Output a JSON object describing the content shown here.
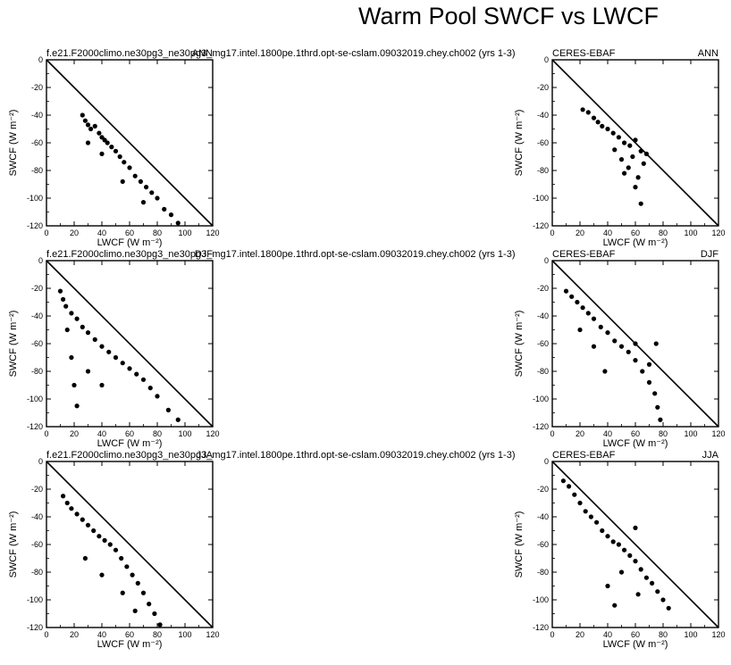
{
  "title": "Warm Pool SWCF vs LWCF",
  "model_case": "f.e21.F2000climo.ne30pg3_ne30pg3_mg17.intel.1800pe.1thrd.opt-se-cslam.09032019.chey.ch002 (yrs 1-3)",
  "obs_name": "CERES-EBAF",
  "chart_data": {
    "type": "scatter",
    "xlabel": "LWCF (W m⁻²)",
    "ylabel": "SWCF (W m⁻²)",
    "xlim": [
      0,
      120
    ],
    "ylim": [
      -120,
      0
    ],
    "xticks": [
      "0",
      "20",
      "40",
      "60",
      "80",
      "100",
      "120"
    ],
    "yticks": [
      "0",
      "-20",
      "-40",
      "-60",
      "-80",
      "-100",
      "-120"
    ],
    "reference_line": {
      "from": [
        0,
        0
      ],
      "to": [
        120,
        -120
      ]
    },
    "panels": [
      {
        "source": "model",
        "season": "ANN",
        "points": [
          [
            26,
            -40
          ],
          [
            28,
            -44
          ],
          [
            30,
            -47
          ],
          [
            32,
            -50
          ],
          [
            35,
            -48
          ],
          [
            38,
            -53
          ],
          [
            40,
            -56
          ],
          [
            42,
            -58
          ],
          [
            44,
            -60
          ],
          [
            47,
            -63
          ],
          [
            50,
            -66
          ],
          [
            53,
            -70
          ],
          [
            56,
            -74
          ],
          [
            60,
            -78
          ],
          [
            64,
            -84
          ],
          [
            68,
            -88
          ],
          [
            72,
            -92
          ],
          [
            76,
            -96
          ],
          [
            80,
            -100
          ],
          [
            85,
            -108
          ],
          [
            90,
            -112
          ],
          [
            95,
            -118
          ],
          [
            30,
            -60
          ],
          [
            40,
            -68
          ],
          [
            55,
            -88
          ],
          [
            70,
            -103
          ]
        ]
      },
      {
        "source": "obs",
        "season": "ANN",
        "points": [
          [
            22,
            -36
          ],
          [
            26,
            -38
          ],
          [
            30,
            -42
          ],
          [
            33,
            -45
          ],
          [
            36,
            -48
          ],
          [
            40,
            -50
          ],
          [
            44,
            -53
          ],
          [
            48,
            -56
          ],
          [
            52,
            -60
          ],
          [
            56,
            -62
          ],
          [
            60,
            -58
          ],
          [
            64,
            -66
          ],
          [
            66,
            -75
          ],
          [
            62,
            -85
          ],
          [
            60,
            -92
          ],
          [
            64,
            -104
          ],
          [
            55,
            -78
          ],
          [
            50,
            -72
          ],
          [
            45,
            -65
          ],
          [
            58,
            -70
          ],
          [
            68,
            -68
          ],
          [
            52,
            -82
          ]
        ]
      },
      {
        "source": "model",
        "season": "DJF",
        "points": [
          [
            10,
            -22
          ],
          [
            12,
            -28
          ],
          [
            14,
            -33
          ],
          [
            18,
            -38
          ],
          [
            22,
            -42
          ],
          [
            26,
            -48
          ],
          [
            30,
            -52
          ],
          [
            35,
            -57
          ],
          [
            40,
            -62
          ],
          [
            45,
            -66
          ],
          [
            50,
            -70
          ],
          [
            55,
            -74
          ],
          [
            60,
            -78
          ],
          [
            65,
            -82
          ],
          [
            70,
            -86
          ],
          [
            75,
            -92
          ],
          [
            80,
            -98
          ],
          [
            88,
            -108
          ],
          [
            95,
            -115
          ],
          [
            15,
            -50
          ],
          [
            18,
            -70
          ],
          [
            20,
            -90
          ],
          [
            22,
            -105
          ],
          [
            30,
            -80
          ],
          [
            40,
            -90
          ]
        ]
      },
      {
        "source": "obs",
        "season": "DJF",
        "points": [
          [
            10,
            -22
          ],
          [
            14,
            -26
          ],
          [
            18,
            -30
          ],
          [
            22,
            -34
          ],
          [
            26,
            -38
          ],
          [
            30,
            -42
          ],
          [
            35,
            -48
          ],
          [
            40,
            -52
          ],
          [
            45,
            -58
          ],
          [
            50,
            -62
          ],
          [
            55,
            -66
          ],
          [
            60,
            -72
          ],
          [
            65,
            -80
          ],
          [
            70,
            -88
          ],
          [
            74,
            -96
          ],
          [
            76,
            -106
          ],
          [
            78,
            -115
          ],
          [
            20,
            -50
          ],
          [
            30,
            -62
          ],
          [
            38,
            -80
          ],
          [
            60,
            -60
          ],
          [
            75,
            -60
          ],
          [
            70,
            -75
          ]
        ]
      },
      {
        "source": "model",
        "season": "JJA",
        "points": [
          [
            12,
            -25
          ],
          [
            15,
            -30
          ],
          [
            18,
            -34
          ],
          [
            22,
            -38
          ],
          [
            26,
            -42
          ],
          [
            30,
            -46
          ],
          [
            34,
            -50
          ],
          [
            38,
            -54
          ],
          [
            42,
            -57
          ],
          [
            46,
            -60
          ],
          [
            50,
            -64
          ],
          [
            54,
            -70
          ],
          [
            58,
            -76
          ],
          [
            62,
            -82
          ],
          [
            66,
            -88
          ],
          [
            70,
            -95
          ],
          [
            74,
            -103
          ],
          [
            78,
            -110
          ],
          [
            82,
            -118
          ],
          [
            28,
            -70
          ],
          [
            40,
            -82
          ],
          [
            55,
            -95
          ],
          [
            64,
            -108
          ]
        ]
      },
      {
        "source": "obs",
        "season": "JJA",
        "points": [
          [
            8,
            -14
          ],
          [
            12,
            -18
          ],
          [
            16,
            -24
          ],
          [
            20,
            -30
          ],
          [
            24,
            -36
          ],
          [
            28,
            -40
          ],
          [
            32,
            -44
          ],
          [
            36,
            -50
          ],
          [
            40,
            -54
          ],
          [
            44,
            -58
          ],
          [
            48,
            -60
          ],
          [
            52,
            -64
          ],
          [
            56,
            -68
          ],
          [
            60,
            -72
          ],
          [
            64,
            -78
          ],
          [
            68,
            -84
          ],
          [
            72,
            -88
          ],
          [
            76,
            -94
          ],
          [
            80,
            -100
          ],
          [
            84,
            -106
          ],
          [
            60,
            -48
          ],
          [
            50,
            -80
          ],
          [
            40,
            -90
          ],
          [
            62,
            -96
          ],
          [
            45,
            -104
          ]
        ]
      }
    ]
  }
}
